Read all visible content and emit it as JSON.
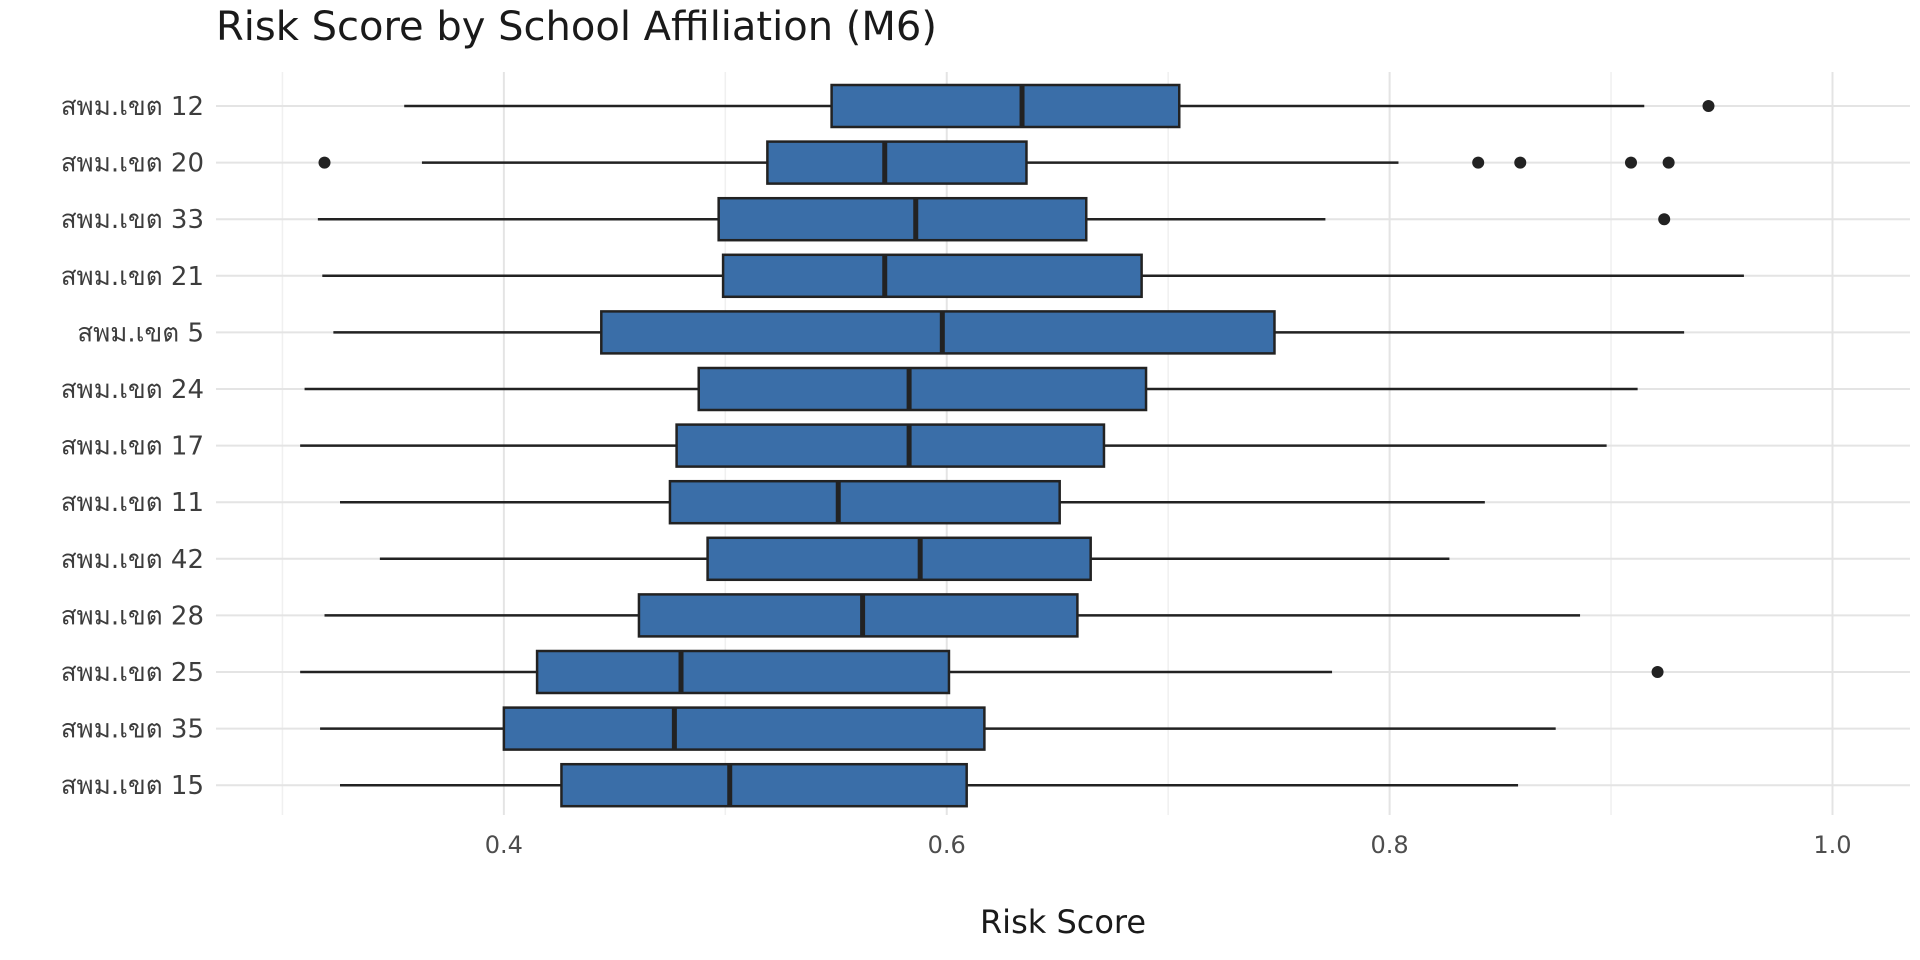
{
  "chart_data": {
    "type": "boxplot",
    "title": "Risk Score by School Affiliation (M6)",
    "xlabel": "Risk Score",
    "ylabel": "",
    "xlim": [
      0.27,
      1.035
    ],
    "xticks": [
      0.4,
      0.6,
      0.8,
      1.0
    ],
    "xtick_labels": [
      "0.4",
      "0.6",
      "0.8",
      "1.0"
    ],
    "grid": true,
    "box_color": "#3a6ea8",
    "outline_color": "#222222",
    "categories": [
      "สพม.เขต 12",
      "สพม.เขต 20",
      "สพม.เขต 33",
      "สพม.เขต 21",
      "สพม.เขต 5",
      "สพม.เขต 24",
      "สพม.เขต 17",
      "สพม.เขต 11",
      "สพม.เขต 42",
      "สพม.เขต 28",
      "สพม.เขต 25",
      "สพม.เขต 35",
      "สพม.เขต 15"
    ],
    "boxes": [
      {
        "label": "สพม.เขต 12",
        "whisker_low": 0.355,
        "q1": 0.548,
        "median": 0.634,
        "q3": 0.705,
        "whisker_high": 0.915,
        "outliers": [
          0.944
        ]
      },
      {
        "label": "สพม.เขต 20",
        "whisker_low": 0.363,
        "q1": 0.519,
        "median": 0.572,
        "q3": 0.636,
        "whisker_high": 0.804,
        "outliers": [
          0.319,
          0.84,
          0.859,
          0.909,
          0.926
        ]
      },
      {
        "label": "สพม.เขต 33",
        "whisker_low": 0.316,
        "q1": 0.497,
        "median": 0.586,
        "q3": 0.663,
        "whisker_high": 0.771,
        "outliers": [
          0.924
        ]
      },
      {
        "label": "สพม.เขต 21",
        "whisker_low": 0.318,
        "q1": 0.499,
        "median": 0.572,
        "q3": 0.688,
        "whisker_high": 0.96,
        "outliers": []
      },
      {
        "label": "สพม.เขต 5",
        "whisker_low": 0.323,
        "q1": 0.444,
        "median": 0.598,
        "q3": 0.748,
        "whisker_high": 0.933,
        "outliers": []
      },
      {
        "label": "สพม.เขต 24",
        "whisker_low": 0.31,
        "q1": 0.488,
        "median": 0.583,
        "q3": 0.69,
        "whisker_high": 0.912,
        "outliers": []
      },
      {
        "label": "สพม.เขต 17",
        "whisker_low": 0.308,
        "q1": 0.478,
        "median": 0.583,
        "q3": 0.671,
        "whisker_high": 0.898,
        "outliers": []
      },
      {
        "label": "สพม.เขต 11",
        "whisker_low": 0.326,
        "q1": 0.475,
        "median": 0.551,
        "q3": 0.651,
        "whisker_high": 0.843,
        "outliers": []
      },
      {
        "label": "สพม.เขต 42",
        "whisker_low": 0.344,
        "q1": 0.492,
        "median": 0.588,
        "q3": 0.665,
        "whisker_high": 0.827,
        "outliers": []
      },
      {
        "label": "สพม.เขต 28",
        "whisker_low": 0.319,
        "q1": 0.461,
        "median": 0.562,
        "q3": 0.659,
        "whisker_high": 0.886,
        "outliers": []
      },
      {
        "label": "สพม.เขต 25",
        "whisker_low": 0.308,
        "q1": 0.415,
        "median": 0.48,
        "q3": 0.601,
        "whisker_high": 0.774,
        "outliers": [
          0.921
        ]
      },
      {
        "label": "สพม.เขต 35",
        "whisker_low": 0.317,
        "q1": 0.4,
        "median": 0.477,
        "q3": 0.617,
        "whisker_high": 0.875,
        "outliers": []
      },
      {
        "label": "สพม.เขต 15",
        "whisker_low": 0.326,
        "q1": 0.426,
        "median": 0.502,
        "q3": 0.609,
        "whisker_high": 0.858,
        "outliers": []
      }
    ]
  }
}
